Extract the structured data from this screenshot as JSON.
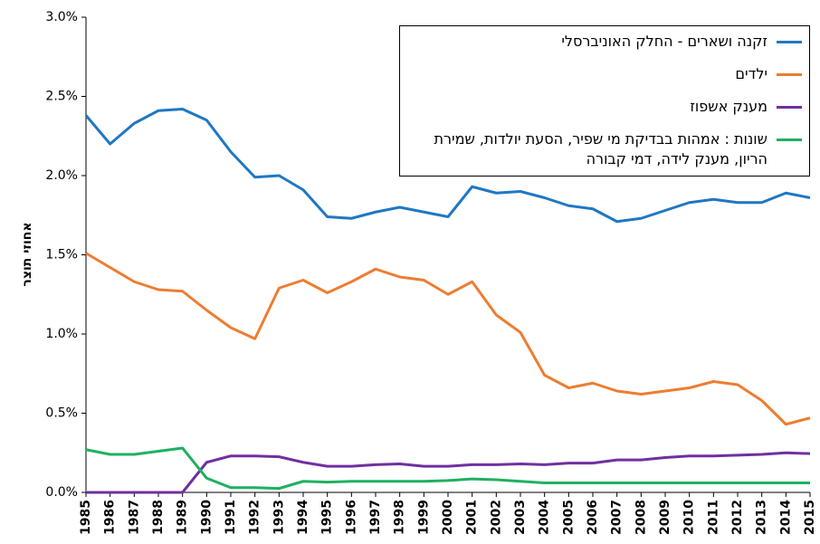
{
  "chart_data": {
    "type": "line",
    "y_label": "אחוזי תוצר",
    "x": [
      1985,
      1986,
      1987,
      1988,
      1989,
      1990,
      1991,
      1992,
      1993,
      1994,
      1995,
      1996,
      1997,
      1998,
      1999,
      2000,
      2001,
      2002,
      2003,
      2004,
      2005,
      2006,
      2007,
      2008,
      2009,
      2010,
      2011,
      2012,
      2013,
      2014,
      2015
    ],
    "xlim": [
      1985,
      2015
    ],
    "ylim": [
      0,
      3
    ],
    "yticks": [
      {
        "value": 0,
        "label": "0.0%"
      },
      {
        "value": 0.5,
        "label": "0.5%"
      },
      {
        "value": 1,
        "label": "1.0%"
      },
      {
        "value": 1.5,
        "label": "1.5%"
      },
      {
        "value": 2,
        "label": "2.0%"
      },
      {
        "value": 2.5,
        "label": "2.5%"
      },
      {
        "value": 3,
        "label": "3.0%"
      }
    ],
    "grid": false,
    "series": [
      {
        "name": "זקנה ושארים - החלק האוניברסלי",
        "color": "#1f77c4",
        "values": [
          2.38,
          2.2,
          2.33,
          2.41,
          2.42,
          2.35,
          2.15,
          1.99,
          2.0,
          1.91,
          1.74,
          1.73,
          1.77,
          1.8,
          1.77,
          1.74,
          1.93,
          1.89,
          1.9,
          1.86,
          1.81,
          1.79,
          1.71,
          1.73,
          1.78,
          1.83,
          1.85,
          1.83,
          1.83,
          1.89,
          1.86
        ]
      },
      {
        "name": "ילדים",
        "color": "#ed7d31",
        "values": [
          1.51,
          1.42,
          1.33,
          1.28,
          1.27,
          1.15,
          1.04,
          0.97,
          1.29,
          1.34,
          1.26,
          1.33,
          1.41,
          1.36,
          1.34,
          1.25,
          1.33,
          1.12,
          1.01,
          0.74,
          0.66,
          0.69,
          0.64,
          0.62,
          0.64,
          0.66,
          0.7,
          0.68,
          0.58,
          0.43,
          0.47
        ]
      },
      {
        "name": "מענק אשפוז",
        "color": "#7030a0",
        "values": [
          0,
          0,
          0,
          0,
          0,
          0.19,
          0.23,
          0.23,
          0.225,
          0.19,
          0.165,
          0.165,
          0.175,
          0.18,
          0.165,
          0.165,
          0.175,
          0.175,
          0.18,
          0.175,
          0.185,
          0.185,
          0.205,
          0.205,
          0.22,
          0.23,
          0.23,
          0.235,
          0.24,
          0.25,
          0.245
        ]
      },
      {
        "name": "שונות : אמהות בבדיקת מי שפיר, הסעת יולדות, שמירת הריון, מענק לידה, דמי קבורה",
        "color": "#1fb060",
        "values": [
          0.27,
          0.24,
          0.24,
          0.26,
          0.28,
          0.09,
          0.03,
          0.03,
          0.025,
          0.07,
          0.065,
          0.07,
          0.07,
          0.07,
          0.07,
          0.075,
          0.085,
          0.08,
          0.07,
          0.06,
          0.06,
          0.06,
          0.06,
          0.06,
          0.06,
          0.06,
          0.06,
          0.06,
          0.06,
          0.06,
          0.06
        ]
      }
    ]
  }
}
